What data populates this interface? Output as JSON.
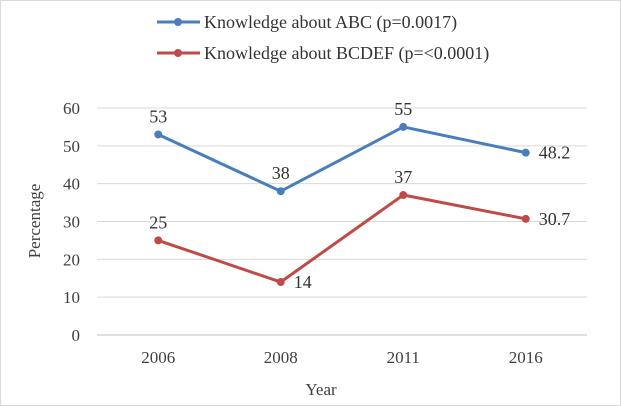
{
  "chart_data": {
    "type": "line",
    "title": "",
    "xlabel": "Year",
    "ylabel": "Percentage",
    "categories": [
      "2006",
      "2008",
      "2011",
      "2016"
    ],
    "ylim": [
      0,
      60
    ],
    "yticks": [
      0,
      10,
      20,
      30,
      40,
      50,
      60
    ],
    "grid": true,
    "legend_position": "top",
    "series": [
      {
        "name": "Knowledge about ABC (p=0.0017)",
        "color": "#4a7ebb",
        "values": [
          53,
          38,
          55,
          48.2
        ],
        "labels": [
          "53",
          "38",
          "55",
          "48.2"
        ]
      },
      {
        "name": "Knowledge about BCDEF (p=<0.0001)",
        "color": "#be4b48",
        "values": [
          25,
          14,
          37,
          30.7
        ],
        "labels": [
          "25",
          "14",
          "37",
          "30.7"
        ]
      }
    ]
  }
}
